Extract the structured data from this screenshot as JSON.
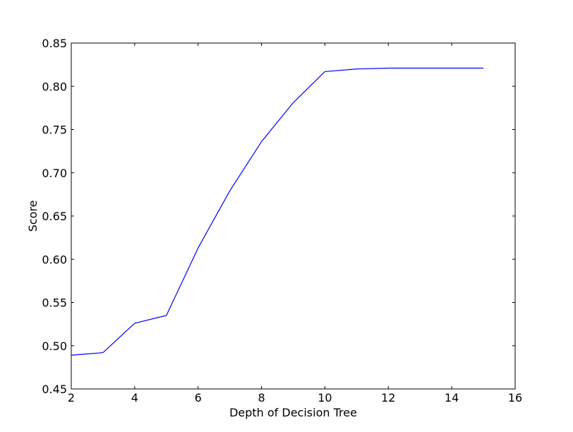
{
  "colors": {
    "background": "#ffffff",
    "line": "#0000ff",
    "axes": "#000000"
  },
  "chart_data": {
    "type": "line",
    "title": "",
    "xlabel": "Depth of Decision Tree",
    "ylabel": "Score",
    "xlim": [
      2,
      16
    ],
    "ylim": [
      0.45,
      0.85
    ],
    "xticks": [
      2,
      4,
      6,
      8,
      10,
      12,
      14,
      16
    ],
    "yticks": [
      0.45,
      0.5,
      0.55,
      0.6,
      0.65,
      0.7,
      0.75,
      0.8,
      0.85
    ],
    "xtick_labels": [
      "2",
      "4",
      "6",
      "8",
      "10",
      "12",
      "14",
      "16"
    ],
    "ytick_labels": [
      "0.45",
      "0.50",
      "0.55",
      "0.60",
      "0.65",
      "0.70",
      "0.75",
      "0.80",
      "0.85"
    ],
    "grid": false,
    "series": [
      {
        "x": [
          2,
          3,
          4,
          5,
          6,
          7,
          8,
          9,
          10,
          11,
          12,
          13,
          14,
          15
        ],
        "y": [
          0.489,
          0.492,
          0.526,
          0.535,
          0.613,
          0.679,
          0.736,
          0.781,
          0.817,
          0.82,
          0.821,
          0.821,
          0.821,
          0.821
        ],
        "color": "#0000ff"
      }
    ]
  }
}
